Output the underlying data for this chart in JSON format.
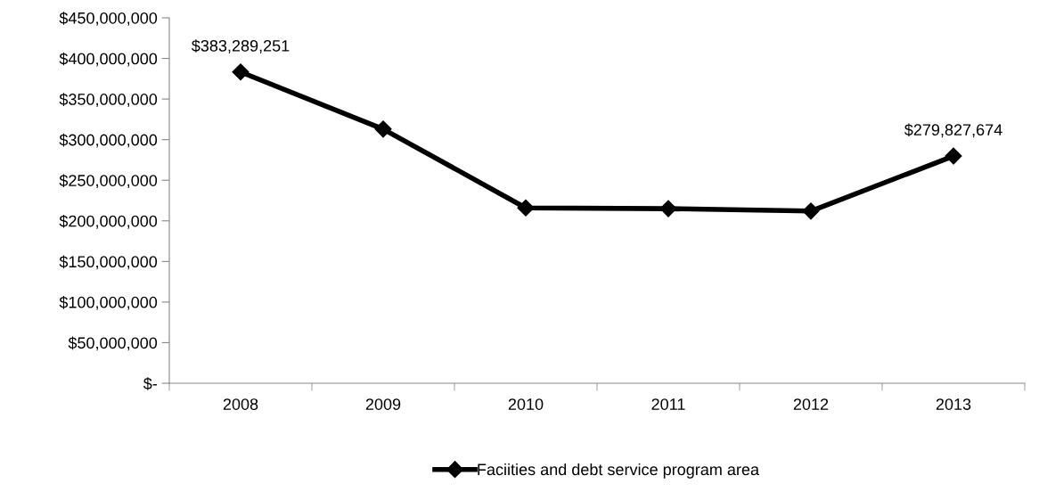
{
  "chart_data": {
    "type": "line",
    "categories": [
      "2008",
      "2009",
      "2010",
      "2011",
      "2012",
      "2013"
    ],
    "series": [
      {
        "name": "Faciities and debt service program area",
        "color": "#000000",
        "values": [
          383289251,
          313000000,
          216000000,
          215000000,
          212000000,
          279827674
        ],
        "value_labels": [
          "$383,289,251",
          null,
          null,
          null,
          null,
          "$279,827,674"
        ]
      }
    ],
    "ylim": [
      0,
      450000000
    ],
    "yticks": [
      {
        "value": 0,
        "label": "$-"
      },
      {
        "value": 50000000,
        "label": "$50,000,000"
      },
      {
        "value": 100000000,
        "label": "$100,000,000"
      },
      {
        "value": 150000000,
        "label": "$150,000,000"
      },
      {
        "value": 200000000,
        "label": "$200,000,000"
      },
      {
        "value": 250000000,
        "label": "$250,000,000"
      },
      {
        "value": 300000000,
        "label": "$300,000,000"
      },
      {
        "value": 350000000,
        "label": "$350,000,000"
      },
      {
        "value": 400000000,
        "label": "$400,000,000"
      },
      {
        "value": 450000000,
        "label": "$450,000,000"
      }
    ],
    "grid": false,
    "legend": "bottom",
    "marker": "diamond",
    "line_style": "solid"
  }
}
